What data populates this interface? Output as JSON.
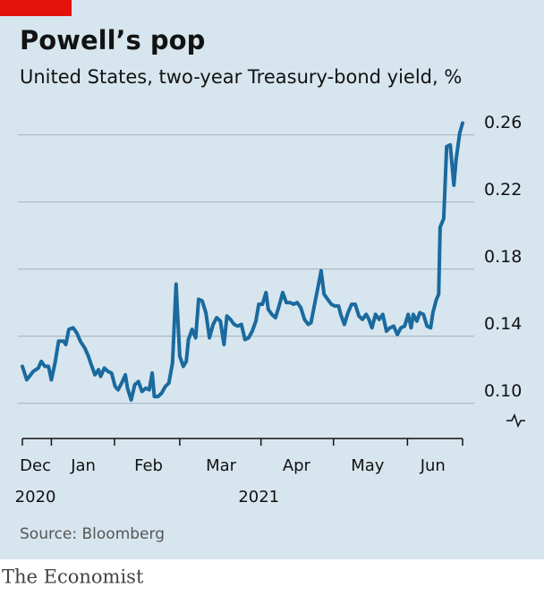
{
  "chart_data": {
    "type": "line",
    "title": "Powell’s pop",
    "subtitle": "United States, two-year Treasury-bond yield, %",
    "source": "Source: Bloomberg",
    "brand": "The Economist",
    "xlim": [
      0.62,
      6.69
    ],
    "ylim": [
      0.079,
      0.271
    ],
    "xticks": [
      {
        "value": 0.8,
        "label": "Dec"
      },
      {
        "value": 1.46,
        "label": "Jan"
      },
      {
        "value": 2.36,
        "label": "Feb"
      },
      {
        "value": 3.36,
        "label": "Mar"
      },
      {
        "value": 4.4,
        "label": "Apr"
      },
      {
        "value": 5.38,
        "label": "May"
      },
      {
        "value": 6.28,
        "label": "Jun"
      }
    ],
    "xtick_marks": [
      0.62,
      1.02,
      1.89,
      2.79,
      3.91,
      4.91,
      5.93,
      6.69
    ],
    "year_labels": [
      {
        "value": 0.8,
        "label": "2020"
      },
      {
        "value": 3.88,
        "label": "2021"
      }
    ],
    "yticks": [
      {
        "value": 0.1,
        "label": "0.10"
      },
      {
        "value": 0.14,
        "label": "0.14"
      },
      {
        "value": 0.18,
        "label": "0.18"
      },
      {
        "value": 0.22,
        "label": "0.22"
      },
      {
        "value": 0.26,
        "label": "0.26"
      }
    ],
    "grid": true,
    "series": [
      {
        "color": "#1a6a9e",
        "x": [
          0.62,
          0.68,
          0.77,
          0.84,
          0.88,
          0.93,
          0.98,
          1.02,
          1.07,
          1.12,
          1.19,
          1.22,
          1.26,
          1.32,
          1.37,
          1.42,
          1.48,
          1.53,
          1.57,
          1.62,
          1.67,
          1.7,
          1.75,
          1.8,
          1.85,
          1.9,
          1.94,
          1.99,
          2.04,
          2.07,
          2.12,
          2.17,
          2.22,
          2.27,
          2.32,
          2.37,
          2.41,
          2.44,
          2.49,
          2.54,
          2.59,
          2.64,
          2.69,
          2.74,
          2.79,
          2.84,
          2.88,
          2.91,
          2.96,
          3.01,
          3.05,
          3.1,
          3.15,
          3.2,
          3.25,
          3.3,
          3.35,
          3.4,
          3.44,
          3.49,
          3.54,
          3.59,
          3.64,
          3.69,
          3.74,
          3.79,
          3.84,
          3.88,
          3.93,
          3.98,
          4.01,
          4.06,
          4.11,
          4.16,
          4.21,
          4.26,
          4.31,
          4.36,
          4.41,
          4.46,
          4.51,
          4.56,
          4.6,
          4.65,
          4.7,
          4.74,
          4.78,
          4.83,
          4.88,
          4.93,
          4.98,
          5.01,
          5.06,
          5.11,
          5.16,
          5.21,
          5.26,
          5.31,
          5.36,
          5.4,
          5.44,
          5.49,
          5.54,
          5.59,
          5.64,
          5.69,
          5.74,
          5.79,
          5.84,
          5.89,
          5.94,
          5.98,
          6.01,
          6.06,
          6.1,
          6.15,
          6.2,
          6.25,
          6.28,
          6.33,
          6.36,
          6.38,
          6.43,
          6.47,
          6.52,
          6.57,
          6.6,
          6.65,
          6.69
        ],
        "values": [
          0.122,
          0.114,
          0.119,
          0.121,
          0.125,
          0.122,
          0.122,
          0.114,
          0.124,
          0.137,
          0.137,
          0.135,
          0.144,
          0.145,
          0.142,
          0.137,
          0.133,
          0.128,
          0.123,
          0.117,
          0.12,
          0.116,
          0.121,
          0.119,
          0.118,
          0.11,
          0.108,
          0.112,
          0.117,
          0.109,
          0.102,
          0.111,
          0.113,
          0.107,
          0.109,
          0.108,
          0.118,
          0.104,
          0.104,
          0.106,
          0.11,
          0.112,
          0.124,
          0.171,
          0.128,
          0.122,
          0.125,
          0.138,
          0.144,
          0.139,
          0.162,
          0.161,
          0.154,
          0.139,
          0.147,
          0.151,
          0.149,
          0.135,
          0.152,
          0.15,
          0.147,
          0.146,
          0.147,
          0.138,
          0.139,
          0.143,
          0.149,
          0.159,
          0.159,
          0.166,
          0.156,
          0.153,
          0.151,
          0.158,
          0.166,
          0.16,
          0.16,
          0.159,
          0.16,
          0.157,
          0.15,
          0.147,
          0.148,
          0.159,
          0.17,
          0.179,
          0.165,
          0.162,
          0.159,
          0.158,
          0.158,
          0.153,
          0.147,
          0.154,
          0.159,
          0.159,
          0.152,
          0.15,
          0.153,
          0.15,
          0.145,
          0.153,
          0.15,
          0.153,
          0.143,
          0.145,
          0.146,
          0.141,
          0.145,
          0.146,
          0.153,
          0.145,
          0.153,
          0.149,
          0.154,
          0.153,
          0.146,
          0.145,
          0.154,
          0.162,
          0.165,
          0.205,
          0.21,
          0.253,
          0.254,
          0.23,
          0.245,
          0.261,
          0.267
        ]
      }
    ]
  }
}
